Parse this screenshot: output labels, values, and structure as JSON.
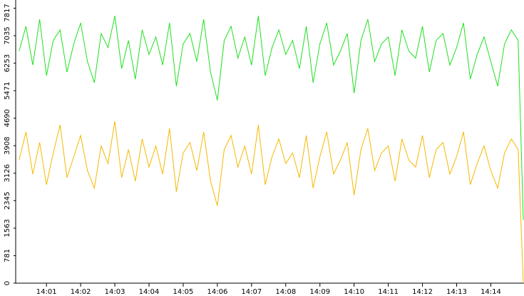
{
  "chart_data": {
    "type": "line",
    "x": [
      0.2,
      0.4,
      0.6,
      0.8,
      1.0,
      1.2,
      1.4,
      1.6,
      1.8,
      2.0,
      2.2,
      2.4,
      2.6,
      2.8,
      3.0,
      3.2,
      3.4,
      3.6,
      3.8,
      4.0,
      4.2,
      4.4,
      4.6,
      4.8,
      5.0,
      5.2,
      5.4,
      5.6,
      5.8,
      6.0,
      6.2,
      6.4,
      6.6,
      6.8,
      7.0,
      7.2,
      7.4,
      7.6,
      7.8,
      8.0,
      8.2,
      8.4,
      8.6,
      8.8,
      9.0,
      9.2,
      9.4,
      9.6,
      9.8,
      10.0,
      10.2,
      10.4,
      10.6,
      10.8,
      11.0,
      11.2,
      11.4,
      11.6,
      11.8,
      12.0,
      12.2,
      12.4,
      12.6,
      12.8,
      13.0,
      13.2,
      13.4,
      13.6,
      13.8,
      14.0,
      14.2,
      14.4,
      14.6,
      14.8,
      14.95
    ],
    "series": [
      {
        "color": "#1ee01e",
        "values": [
          6600,
          7300,
          6200,
          7500,
          5900,
          6900,
          7200,
          6000,
          6800,
          7400,
          6300,
          5700,
          7100,
          6700,
          7600,
          6100,
          6900,
          5800,
          7200,
          6500,
          7000,
          6200,
          7400,
          5600,
          6800,
          7100,
          6300,
          7500,
          6000,
          5200,
          6900,
          7300,
          6400,
          7000,
          6200,
          7600,
          5900,
          6700,
          7200,
          6500,
          6900,
          6100,
          7300,
          5700,
          6800,
          7400,
          6200,
          6600,
          7100,
          5400,
          6900,
          7500,
          6300,
          6800,
          7000,
          5900,
          7200,
          6600,
          6400,
          7300,
          6000,
          6900,
          7100,
          6200,
          6700,
          7400,
          5800,
          6500,
          7000,
          6300,
          5600,
          6800,
          7200,
          6900,
          1800
        ]
      },
      {
        "color": "#f5b800",
        "values": [
          3500,
          4300,
          3100,
          4000,
          2800,
          3700,
          4500,
          3000,
          3600,
          4200,
          3200,
          2700,
          3900,
          3400,
          4600,
          3000,
          3800,
          2900,
          4100,
          3300,
          3900,
          3100,
          4400,
          2600,
          3700,
          4000,
          3200,
          4300,
          2900,
          2200,
          3800,
          4200,
          3300,
          3900,
          3100,
          4500,
          2800,
          3600,
          4100,
          3400,
          3700,
          3000,
          4200,
          2700,
          3600,
          4300,
          3100,
          3500,
          4000,
          2500,
          3800,
          4400,
          3200,
          3700,
          3900,
          2900,
          4100,
          3500,
          3300,
          4200,
          3000,
          3800,
          4000,
          3100,
          3600,
          4300,
          2800,
          3400,
          3900,
          3200,
          2700,
          3700,
          4100,
          3800,
          0
        ]
      }
    ],
    "xlim": [
      0.1,
      14.97
    ],
    "xticks": [
      {
        "value": 1,
        "label": "14:01"
      },
      {
        "value": 2,
        "label": "14:02"
      },
      {
        "value": 3,
        "label": "14:03"
      },
      {
        "value": 4,
        "label": "14:04"
      },
      {
        "value": 5,
        "label": "14:05"
      },
      {
        "value": 6,
        "label": "14:06"
      },
      {
        "value": 7,
        "label": "14:07"
      },
      {
        "value": 8,
        "label": "14:08"
      },
      {
        "value": 9,
        "label": "14:09"
      },
      {
        "value": 10,
        "label": "14:10"
      },
      {
        "value": 11,
        "label": "14:11"
      },
      {
        "value": 12,
        "label": "14:12"
      },
      {
        "value": 13,
        "label": "14:13"
      },
      {
        "value": 14,
        "label": "14:14"
      }
    ],
    "ylim": [
      0,
      8050
    ],
    "yticks": [
      0,
      781,
      1563,
      2345,
      3126,
      3908,
      4690,
      5471,
      6253,
      7035,
      7817
    ]
  }
}
